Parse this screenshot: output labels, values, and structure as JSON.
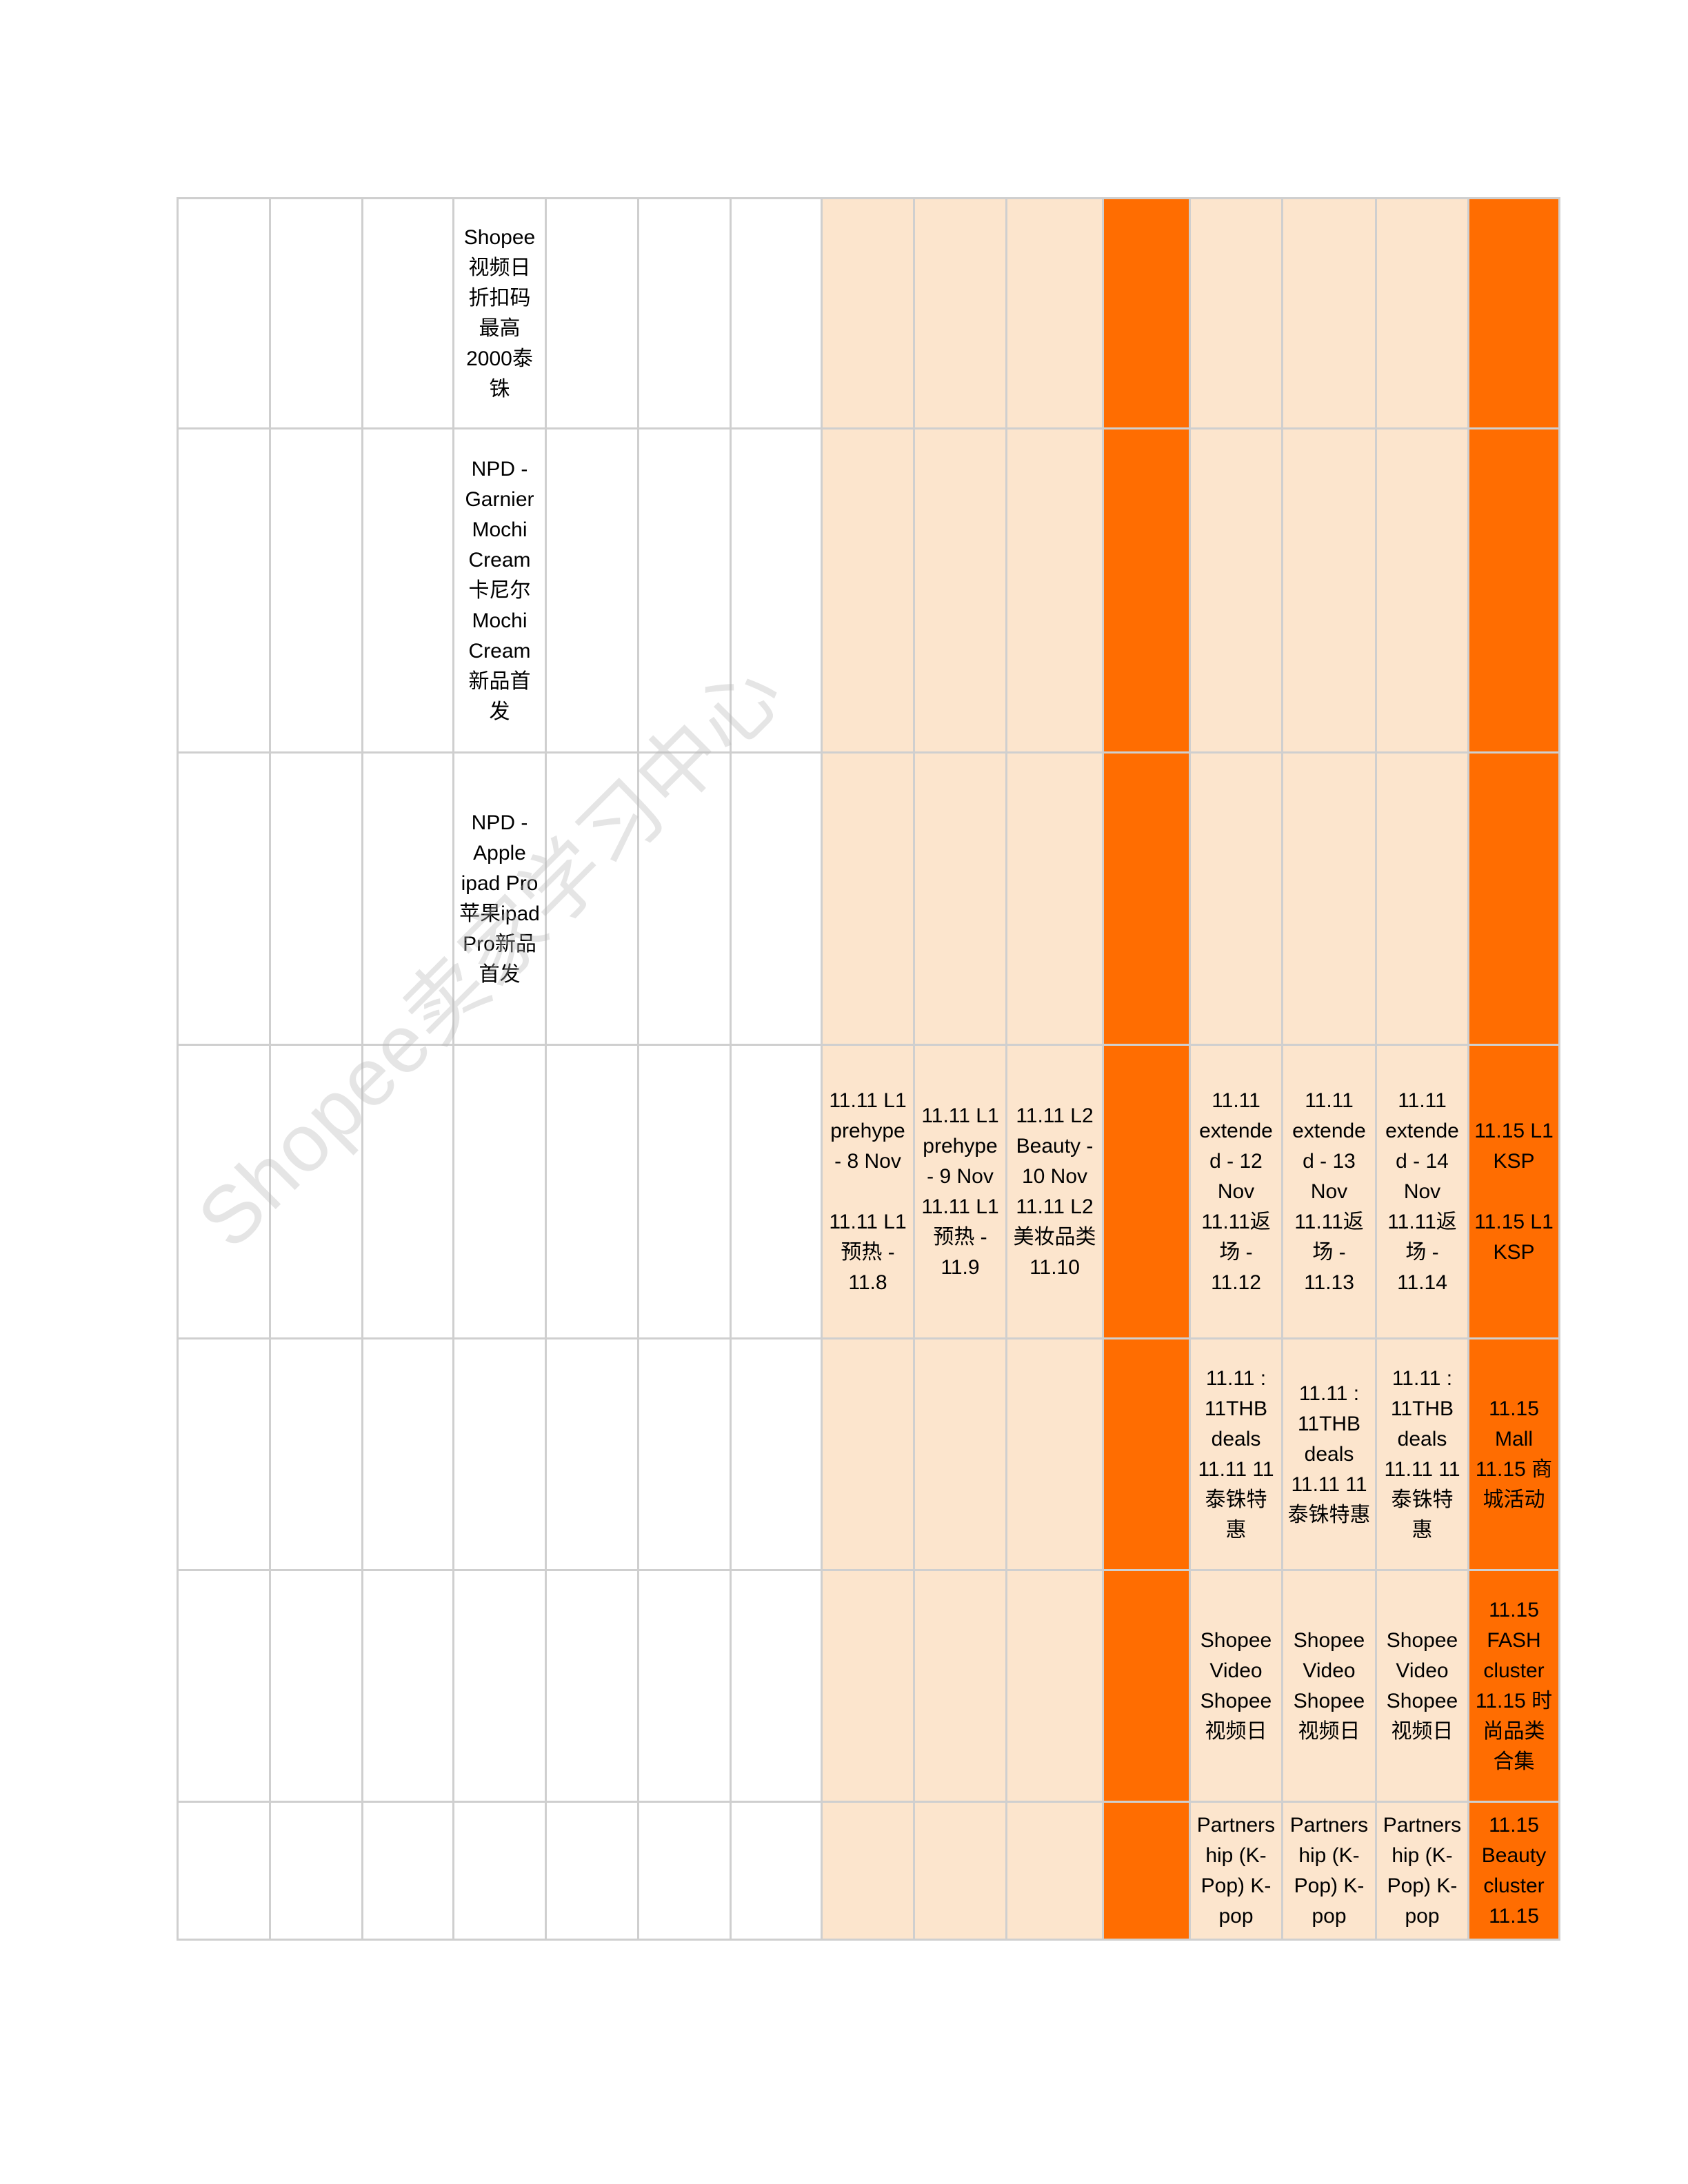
{
  "table": {
    "column_fills": [
      "#ffffff",
      "#ffffff",
      "#ffffff",
      "#ffffff",
      "#ffffff",
      "#ffffff",
      "#ffffff",
      "#fce5cd",
      "#fce5cd",
      "#fce5cd",
      "#ff6d01",
      "#fce5cd",
      "#fce5cd",
      "#fce5cd",
      "#ff6d01"
    ],
    "rows": [
      [
        null,
        null,
        null,
        "Shopee 视频日折扣码最高2000泰铢",
        null,
        null,
        null,
        null,
        null,
        null,
        null,
        null,
        null,
        null,
        null
      ],
      [
        null,
        null,
        null,
        "NPD - Garnier Mochi Cream 卡尼尔Mochi Cream新品首发",
        null,
        null,
        null,
        null,
        null,
        null,
        null,
        null,
        null,
        null,
        null
      ],
      [
        null,
        null,
        null,
        "NPD -Apple ipad Pro 苹果ipad Pro新品首发",
        null,
        null,
        null,
        null,
        null,
        null,
        null,
        null,
        null,
        null,
        null
      ],
      [
        null,
        null,
        null,
        null,
        null,
        null,
        null,
        "11.11 L1 prehype - 8 Nov\n\n11.11 L1预热 - 11.8",
        "11.11 L1 prehype - 9 Nov 11.11 L1预热 - 11.9",
        "11.11 L2 Beauty - 10 Nov 11.11 L2 美妆品类 11.10",
        null,
        "11.11 extended - 12 Nov 11.11返场 - 11.12",
        "11.11 extended - 13 Nov 11.11返场 - 11.13",
        "11.11 extended - 14 Nov 11.11返场 - 11.14",
        "11.15 L1 KSP\n\n11.15 L1 KSP"
      ],
      [
        null,
        null,
        null,
        null,
        null,
        null,
        null,
        null,
        null,
        null,
        null,
        "11.11 : 11THB deals 11.11 11泰铢特惠",
        "11.11 : 11THB deals 11.11 11泰铢特惠",
        "11.11 : 11THB deals 11.11 11泰铢特惠",
        "11.15 Mall 11.15 商城活动"
      ],
      [
        null,
        null,
        null,
        null,
        null,
        null,
        null,
        null,
        null,
        null,
        null,
        "Shopee Video Shopee 视频日",
        "Shopee Video Shopee 视频日",
        "Shopee Video Shopee 视频日",
        "11.15 FASH cluster 11.15 时尚品类合集"
      ],
      [
        null,
        null,
        null,
        null,
        null,
        null,
        null,
        null,
        null,
        null,
        null,
        "Partnership (K-Pop) K-pop",
        "Partnership (K-Pop) K-pop",
        "Partnership (K-Pop) K-pop",
        "11.15 Beauty cluster 11.15"
      ]
    ]
  },
  "watermark": "Shopee卖家学习中心"
}
